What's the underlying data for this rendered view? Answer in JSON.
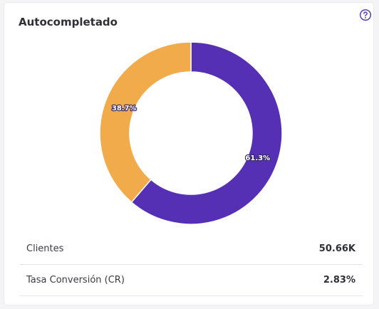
{
  "card": {
    "title": "Autocompletado",
    "help_icon": "question-circle-icon"
  },
  "chart_data": {
    "type": "pie",
    "title": "",
    "donut": true,
    "slices": [
      {
        "value": 61.3,
        "label": "61.3%",
        "color": "#5530b5"
      },
      {
        "value": 38.7,
        "label": "38.7%",
        "color": "#f2ab4a"
      }
    ]
  },
  "stats": [
    {
      "label": "Clientes",
      "value": "50.66K"
    },
    {
      "label": "Tasa Conversión (CR)",
      "value": "2.83%"
    }
  ],
  "colors": {
    "accent": "#5530b5",
    "secondary": "#f2ab4a",
    "help_icon": "#5a3fc0"
  }
}
